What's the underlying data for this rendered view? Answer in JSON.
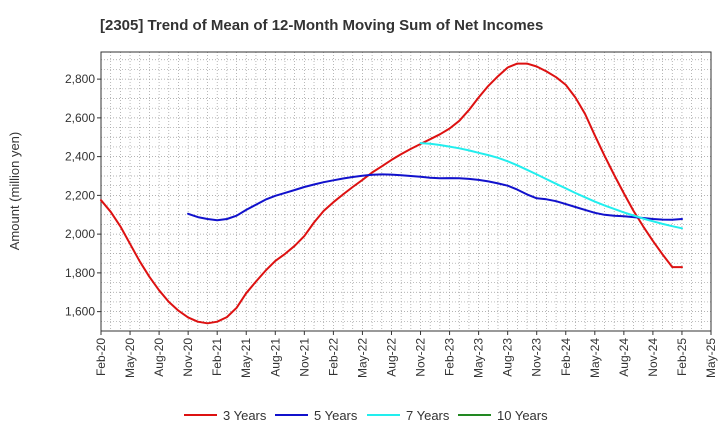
{
  "chart_data": {
    "type": "line",
    "title": "[2305]  Trend of Mean of 12-Month Moving Sum of Net Incomes",
    "ylabel": "Amount (million yen)",
    "xlabel": "",
    "ylim": [
      1500,
      2940
    ],
    "yticks": [
      1600,
      1800,
      2000,
      2200,
      2400,
      2600,
      2800
    ],
    "ytick_labels": [
      "1,600",
      "1,800",
      "2,000",
      "2,200",
      "2,400",
      "2,600",
      "2,800"
    ],
    "x_range": [
      "Feb-20",
      "May-25"
    ],
    "xtick_labels": [
      "Feb-20",
      "May-20",
      "Aug-20",
      "Nov-20",
      "Feb-21",
      "May-21",
      "Aug-21",
      "Nov-21",
      "Feb-22",
      "May-22",
      "Aug-22",
      "Nov-22",
      "Feb-23",
      "May-23",
      "Aug-23",
      "Nov-23",
      "Feb-24",
      "May-24",
      "Aug-24",
      "Nov-24",
      "Feb-25",
      "May-25"
    ],
    "grid": true,
    "legend_position": "bottom",
    "series": [
      {
        "name": "3 Years",
        "color": "#dd1111",
        "points": [
          [
            "Feb-20",
            2175
          ],
          [
            "Mar-20",
            2115
          ],
          [
            "Apr-20",
            2040
          ],
          [
            "May-20",
            1950
          ],
          [
            "Jun-20",
            1860
          ],
          [
            "Jul-20",
            1780
          ],
          [
            "Aug-20",
            1710
          ],
          [
            "Sep-20",
            1650
          ],
          [
            "Oct-20",
            1605
          ],
          [
            "Nov-20",
            1570
          ],
          [
            "Dec-20",
            1548
          ],
          [
            "Jan-21",
            1540
          ],
          [
            "Feb-21",
            1548
          ],
          [
            "Mar-21",
            1572
          ],
          [
            "Apr-21",
            1620
          ],
          [
            "May-21",
            1695
          ],
          [
            "Jun-21",
            1755
          ],
          [
            "Jul-21",
            1812
          ],
          [
            "Aug-21",
            1862
          ],
          [
            "Sep-21",
            1898
          ],
          [
            "Oct-21",
            1940
          ],
          [
            "Nov-21",
            1990
          ],
          [
            "Dec-21",
            2060
          ],
          [
            "Jan-22",
            2120
          ],
          [
            "Feb-22",
            2165
          ],
          [
            "Mar-22",
            2205
          ],
          [
            "Apr-22",
            2243
          ],
          [
            "May-22",
            2280
          ],
          [
            "Jun-22",
            2318
          ],
          [
            "Jul-22",
            2350
          ],
          [
            "Aug-22",
            2383
          ],
          [
            "Sep-22",
            2413
          ],
          [
            "Oct-22",
            2440
          ],
          [
            "Nov-22",
            2465
          ],
          [
            "Dec-22",
            2490
          ],
          [
            "Jan-23",
            2515
          ],
          [
            "Feb-23",
            2545
          ],
          [
            "Mar-23",
            2585
          ],
          [
            "Apr-23",
            2640
          ],
          [
            "May-23",
            2705
          ],
          [
            "Jun-23",
            2765
          ],
          [
            "Jul-23",
            2815
          ],
          [
            "Aug-23",
            2860
          ],
          [
            "Sep-23",
            2880
          ],
          [
            "Oct-23",
            2880
          ],
          [
            "Nov-23",
            2865
          ],
          [
            "Dec-23",
            2840
          ],
          [
            "Jan-24",
            2810
          ],
          [
            "Feb-24",
            2770
          ],
          [
            "Mar-24",
            2705
          ],
          [
            "Apr-24",
            2620
          ],
          [
            "May-24",
            2510
          ],
          [
            "Jun-24",
            2405
          ],
          [
            "Jul-24",
            2305
          ],
          [
            "Aug-24",
            2210
          ],
          [
            "Sep-24",
            2120
          ],
          [
            "Oct-24",
            2040
          ],
          [
            "Nov-24",
            1965
          ],
          [
            "Dec-24",
            1895
          ],
          [
            "Jan-25",
            1830
          ],
          [
            "Feb-25",
            1830
          ]
        ]
      },
      {
        "name": "5 Years",
        "color": "#1111cc",
        "points": [
          [
            "Nov-20",
            2105
          ],
          [
            "Dec-20",
            2088
          ],
          [
            "Jan-21",
            2078
          ],
          [
            "Feb-21",
            2072
          ],
          [
            "Mar-21",
            2078
          ],
          [
            "Apr-21",
            2095
          ],
          [
            "May-21",
            2125
          ],
          [
            "Jun-21",
            2152
          ],
          [
            "Jul-21",
            2178
          ],
          [
            "Aug-21",
            2198
          ],
          [
            "Sep-21",
            2213
          ],
          [
            "Oct-21",
            2228
          ],
          [
            "Nov-21",
            2243
          ],
          [
            "Dec-21",
            2256
          ],
          [
            "Jan-22",
            2268
          ],
          [
            "Feb-22",
            2278
          ],
          [
            "Mar-22",
            2287
          ],
          [
            "Apr-22",
            2295
          ],
          [
            "May-22",
            2301
          ],
          [
            "Jun-22",
            2306
          ],
          [
            "Jul-22",
            2308
          ],
          [
            "Aug-22",
            2307
          ],
          [
            "Sep-22",
            2304
          ],
          [
            "Oct-22",
            2300
          ],
          [
            "Nov-22",
            2296
          ],
          [
            "Dec-22",
            2291
          ],
          [
            "Jan-23",
            2288
          ],
          [
            "Feb-23",
            2289
          ],
          [
            "Mar-23",
            2288
          ],
          [
            "Apr-23",
            2285
          ],
          [
            "May-23",
            2280
          ],
          [
            "Jun-23",
            2272
          ],
          [
            "Jul-23",
            2262
          ],
          [
            "Aug-23",
            2250
          ],
          [
            "Sep-23",
            2230
          ],
          [
            "Oct-23",
            2205
          ],
          [
            "Nov-23",
            2185
          ],
          [
            "Dec-23",
            2180
          ],
          [
            "Jan-24",
            2170
          ],
          [
            "Feb-24",
            2155
          ],
          [
            "Mar-24",
            2140
          ],
          [
            "Apr-24",
            2125
          ],
          [
            "May-24",
            2110
          ],
          [
            "Jun-24",
            2100
          ],
          [
            "Jul-24",
            2095
          ],
          [
            "Aug-24",
            2092
          ],
          [
            "Sep-24",
            2088
          ],
          [
            "Oct-24",
            2083
          ],
          [
            "Nov-24",
            2078
          ],
          [
            "Dec-24",
            2075
          ],
          [
            "Jan-25",
            2074
          ],
          [
            "Feb-25",
            2078
          ]
        ]
      },
      {
        "name": "7 Years",
        "color": "#22eeee",
        "points": [
          [
            "Nov-22",
            2470
          ],
          [
            "Dec-22",
            2466
          ],
          [
            "Jan-23",
            2460
          ],
          [
            "Feb-23",
            2452
          ],
          [
            "Mar-23",
            2443
          ],
          [
            "Apr-23",
            2432
          ],
          [
            "May-23",
            2420
          ],
          [
            "Jun-23",
            2408
          ],
          [
            "Jul-23",
            2394
          ],
          [
            "Aug-23",
            2376
          ],
          [
            "Sep-23",
            2355
          ],
          [
            "Oct-23",
            2332
          ],
          [
            "Nov-23",
            2308
          ],
          [
            "Dec-23",
            2284
          ],
          [
            "Jan-24",
            2260
          ],
          [
            "Feb-24",
            2236
          ],
          [
            "Mar-24",
            2212
          ],
          [
            "Apr-24",
            2190
          ],
          [
            "May-24",
            2168
          ],
          [
            "Jun-24",
            2148
          ],
          [
            "Jul-24",
            2130
          ],
          [
            "Aug-24",
            2112
          ],
          [
            "Sep-24",
            2096
          ],
          [
            "Oct-24",
            2080
          ],
          [
            "Nov-24",
            2066
          ],
          [
            "Dec-24",
            2053
          ],
          [
            "Jan-25",
            2041
          ],
          [
            "Feb-25",
            2030
          ]
        ]
      },
      {
        "name": "10 Years",
        "color": "#228822",
        "points": []
      }
    ]
  }
}
